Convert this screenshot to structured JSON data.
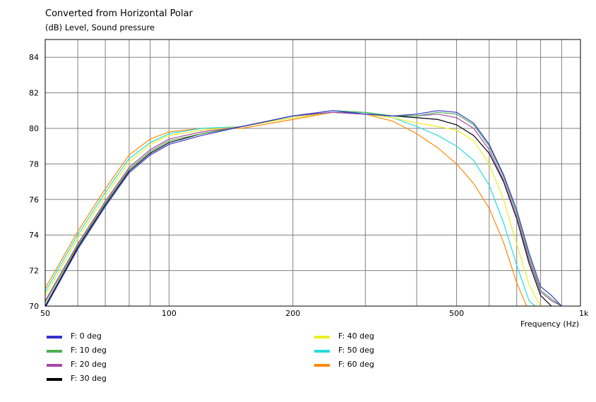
{
  "chart_data": {
    "type": "line",
    "title": "Converted from Horizontal Polar",
    "subtitle": "(dB)  Level, Sound pressure",
    "xlabel": "Frequency  (Hz)",
    "x_scale": "log",
    "xlim": [
      50,
      1000
    ],
    "ylim": [
      70,
      85
    ],
    "grid": true,
    "x_ticks": [
      {
        "v": 50,
        "label": "50"
      },
      {
        "v": 100,
        "label": "100"
      },
      {
        "v": 200,
        "label": "200"
      },
      {
        "v": 500,
        "label": "500"
      },
      {
        "v": 1000,
        "label": "1k"
      }
    ],
    "x_minor_grid": [
      60,
      70,
      80,
      90,
      300,
      400,
      600,
      700,
      800,
      900
    ],
    "y_ticks": [
      70,
      72,
      74,
      76,
      78,
      80,
      82,
      84
    ],
    "legend_placement": "bottom",
    "series": [
      {
        "name": "F: 0 deg",
        "color": "#3333cc",
        "x": [
          50,
          60,
          70,
          80,
          90,
          100,
          120,
          150,
          200,
          250,
          300,
          350,
          400,
          450,
          500,
          550,
          600,
          650,
          700,
          750,
          800,
          850,
          900
        ],
        "y": [
          69.9,
          73.2,
          75.6,
          77.5,
          78.5,
          79.1,
          79.6,
          80.1,
          80.7,
          81.0,
          80.8,
          80.7,
          80.8,
          81.0,
          80.9,
          80.3,
          79.1,
          77.4,
          75.4,
          73.0,
          71.1,
          70.6,
          70.0
        ]
      },
      {
        "name": "F: 10 deg",
        "color": "#4caf50",
        "x": [
          50,
          60,
          70,
          80,
          90,
          100,
          120,
          150,
          200,
          250,
          300,
          350,
          400,
          450,
          500,
          550,
          600,
          650,
          700,
          750,
          800,
          850,
          900
        ],
        "y": [
          70.2,
          73.4,
          75.8,
          77.7,
          78.7,
          79.3,
          79.7,
          80.1,
          80.7,
          81.0,
          80.9,
          80.7,
          80.7,
          80.9,
          80.8,
          80.2,
          79.0,
          77.3,
          75.2,
          72.8,
          70.9,
          70.4,
          70.0
        ]
      },
      {
        "name": "F: 20 deg",
        "color": "#aa44aa",
        "x": [
          50,
          60,
          70,
          80,
          90,
          100,
          120,
          150,
          200,
          250,
          300,
          350,
          400,
          450,
          500,
          550,
          600,
          650,
          700,
          750,
          800,
          850,
          900
        ],
        "y": [
          70.3,
          73.5,
          75.9,
          77.8,
          78.8,
          79.4,
          79.8,
          80.1,
          80.7,
          80.9,
          80.8,
          80.7,
          80.7,
          80.8,
          80.6,
          80.0,
          78.8,
          77.1,
          75.0,
          72.6,
          70.8,
          70.3,
          70.0
        ]
      },
      {
        "name": "F: 30 deg",
        "color": "#000000",
        "x": [
          50,
          60,
          70,
          80,
          90,
          100,
          120,
          150,
          200,
          250,
          300,
          350,
          400,
          450,
          500,
          550,
          600,
          650,
          700,
          750,
          800,
          850
        ],
        "y": [
          70.0,
          73.3,
          75.7,
          77.6,
          78.6,
          79.2,
          79.7,
          80.1,
          80.7,
          80.9,
          80.8,
          80.7,
          80.6,
          80.5,
          80.2,
          79.6,
          78.6,
          77.0,
          74.9,
          72.4,
          70.6,
          70.0
        ]
      },
      {
        "name": "F: 40 deg",
        "color": "#eeee22",
        "x": [
          50,
          60,
          70,
          80,
          90,
          100,
          120,
          150,
          200,
          250,
          300,
          350,
          400,
          450,
          500,
          550,
          600,
          650,
          700,
          750,
          800
        ],
        "y": [
          70.6,
          73.8,
          76.2,
          78.1,
          79.1,
          79.6,
          79.9,
          80.1,
          80.6,
          80.9,
          80.8,
          80.6,
          80.3,
          80.1,
          79.9,
          79.3,
          78.0,
          76.0,
          73.5,
          71.2,
          70.0
        ]
      },
      {
        "name": "F: 50 deg",
        "color": "#22dddd",
        "x": [
          50,
          60,
          70,
          80,
          90,
          100,
          120,
          150,
          200,
          250,
          300,
          350,
          400,
          450,
          500,
          550,
          600,
          650,
          700,
          750,
          775
        ],
        "y": [
          70.8,
          74.0,
          76.4,
          78.3,
          79.2,
          79.7,
          80.0,
          80.1,
          80.6,
          80.9,
          80.9,
          80.6,
          80.1,
          79.6,
          79.0,
          78.2,
          76.8,
          74.7,
          72.3,
          70.3,
          70.0
        ]
      },
      {
        "name": "F: 60 deg",
        "color": "#ff8800",
        "x": [
          50,
          60,
          70,
          80,
          90,
          100,
          120,
          150,
          200,
          250,
          300,
          350,
          400,
          450,
          500,
          550,
          600,
          650,
          700,
          740
        ],
        "y": [
          71.0,
          74.2,
          76.6,
          78.5,
          79.4,
          79.8,
          80.0,
          80.0,
          80.5,
          80.9,
          80.8,
          80.4,
          79.7,
          78.9,
          78.0,
          76.9,
          75.5,
          73.6,
          71.3,
          70.0
        ]
      }
    ]
  }
}
